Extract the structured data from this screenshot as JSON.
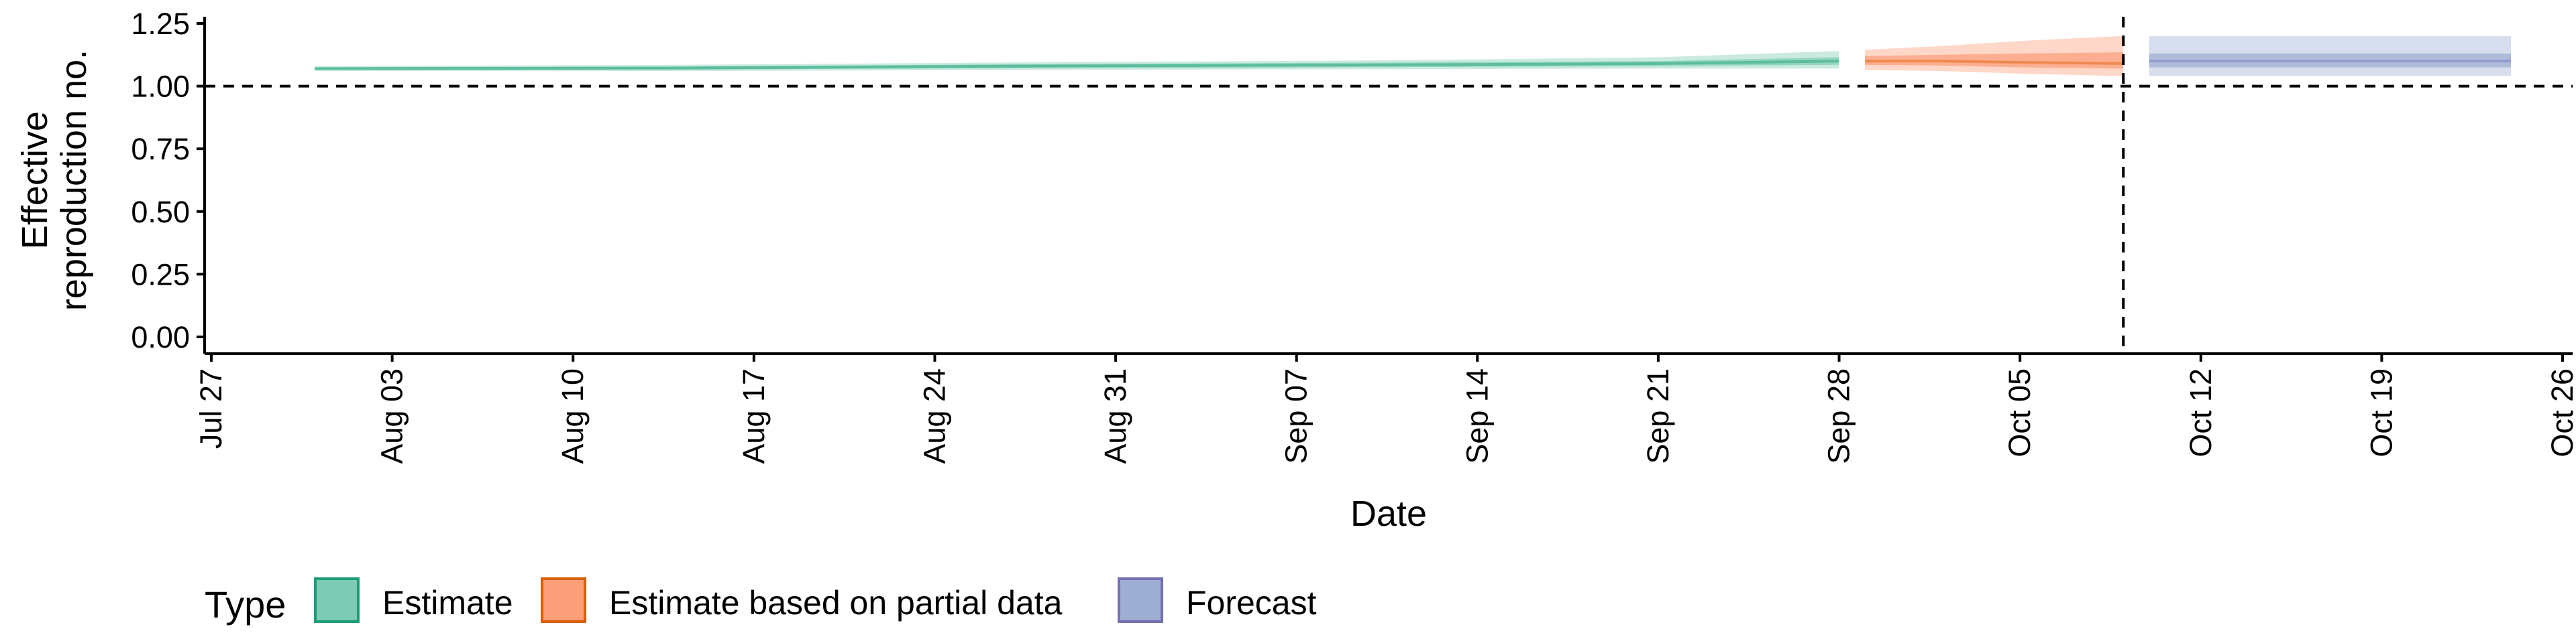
{
  "chart_data": {
    "type": "area",
    "xlabel": "Date",
    "ylabel": [
      "Effective",
      "reproduction no."
    ],
    "ylim": [
      0,
      1.25
    ],
    "y_ticks": [
      "0.00",
      "0.25",
      "0.50",
      "0.75",
      "1.00",
      "1.25"
    ],
    "xlim": [
      "2021-07-27",
      "2021-10-26"
    ],
    "x_ticks": [
      {
        "date": "2021-07-27",
        "label": "Jul 27"
      },
      {
        "date": "2021-08-03",
        "label": "Aug 03"
      },
      {
        "date": "2021-08-10",
        "label": "Aug 10"
      },
      {
        "date": "2021-08-17",
        "label": "Aug 17"
      },
      {
        "date": "2021-08-24",
        "label": "Aug 24"
      },
      {
        "date": "2021-08-31",
        "label": "Aug 31"
      },
      {
        "date": "2021-09-07",
        "label": "Sep 07"
      },
      {
        "date": "2021-09-14",
        "label": "Sep 14"
      },
      {
        "date": "2021-09-21",
        "label": "Sep 21"
      },
      {
        "date": "2021-09-28",
        "label": "Sep 28"
      },
      {
        "date": "2021-10-05",
        "label": "Oct 05"
      },
      {
        "date": "2021-10-12",
        "label": "Oct 12"
      },
      {
        "date": "2021-10-19",
        "label": "Oct 19"
      },
      {
        "date": "2021-10-26",
        "label": "Oct 26"
      }
    ],
    "reference_lines": {
      "horizontal_y": 1.0,
      "vertical_date": "2021-10-09"
    },
    "legend": {
      "title": "Type",
      "position": "bottom"
    },
    "series": [
      {
        "name": "Estimate",
        "color": "#1b9e77",
        "fill": "#66c2a5",
        "points": [
          {
            "date": "2021-07-31",
            "median": 1.07,
            "lower_90": 1.06,
            "upper_90": 1.08,
            "lower_50": 1.065,
            "upper_50": 1.075
          },
          {
            "date": "2021-08-14",
            "median": 1.072,
            "lower_90": 1.06,
            "upper_90": 1.085,
            "lower_50": 1.066,
            "upper_50": 1.078
          },
          {
            "date": "2021-08-28",
            "median": 1.08,
            "lower_90": 1.065,
            "upper_90": 1.095,
            "lower_50": 1.072,
            "upper_50": 1.088
          },
          {
            "date": "2021-09-11",
            "median": 1.085,
            "lower_90": 1.068,
            "upper_90": 1.103,
            "lower_50": 1.076,
            "upper_50": 1.094
          },
          {
            "date": "2021-09-21",
            "median": 1.09,
            "lower_90": 1.07,
            "upper_90": 1.115,
            "lower_50": 1.08,
            "upper_50": 1.1
          },
          {
            "date": "2021-09-28",
            "median": 1.1,
            "lower_90": 1.07,
            "upper_90": 1.14,
            "lower_50": 1.085,
            "upper_50": 1.115
          }
        ]
      },
      {
        "name": "Estimate based on partial data",
        "color": "#d95f02",
        "fill": "#fc8d62",
        "points": [
          {
            "date": "2021-09-29",
            "median": 1.1,
            "lower_90": 1.065,
            "upper_90": 1.145,
            "lower_50": 1.085,
            "upper_50": 1.12
          },
          {
            "date": "2021-10-02",
            "median": 1.1,
            "lower_90": 1.06,
            "upper_90": 1.16,
            "lower_50": 1.082,
            "upper_50": 1.125
          },
          {
            "date": "2021-10-05",
            "median": 1.095,
            "lower_90": 1.05,
            "upper_90": 1.18,
            "lower_50": 1.075,
            "upper_50": 1.13
          },
          {
            "date": "2021-10-09",
            "median": 1.09,
            "lower_90": 1.04,
            "upper_90": 1.2,
            "lower_50": 1.07,
            "upper_50": 1.135
          }
        ]
      },
      {
        "name": "Forecast",
        "color": "#7570b3",
        "fill": "#8da0cb",
        "points": [
          {
            "date": "2021-10-10",
            "median": 1.1,
            "lower_90": 1.04,
            "upper_90": 1.2,
            "lower_50": 1.075,
            "upper_50": 1.13
          },
          {
            "date": "2021-10-24",
            "median": 1.1,
            "lower_90": 1.04,
            "upper_90": 1.2,
            "lower_50": 1.075,
            "upper_50": 1.13
          }
        ]
      }
    ]
  }
}
